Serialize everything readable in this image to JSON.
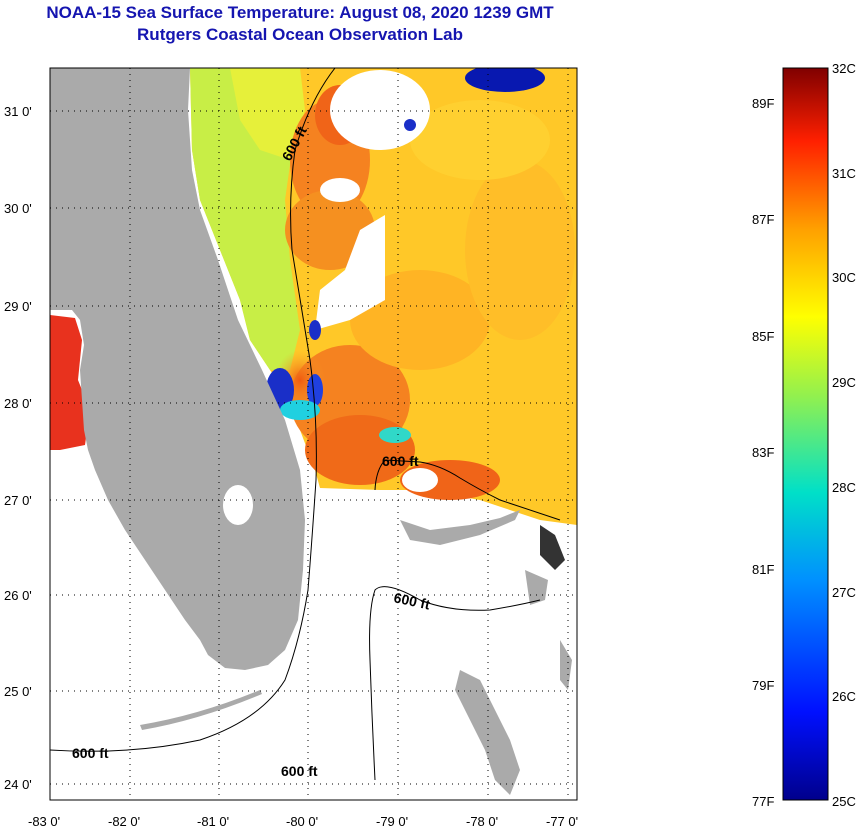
{
  "header": {
    "title": "NOAA-15 Sea Surface Temperature:  August 08, 2020 1239 GMT",
    "subtitle": "Rutgers Coastal Ocean Observation Lab"
  },
  "map": {
    "lon_labels": [
      "-83 0'",
      "-82 0'",
      "-81 0'",
      "-80 0'",
      "-79 0'",
      "-78 0'",
      "-77 0'"
    ],
    "lat_labels": [
      "31 0'",
      "30 0'",
      "29 0'",
      "28 0'",
      "27 0'",
      "26 0'",
      "25 0'",
      "24 0'"
    ],
    "contour_labels": [
      "600 ft",
      "600 ft",
      "600 ft",
      "600 ft",
      "600 ft"
    ],
    "colors": {
      "land": "#aaaaaa",
      "no_data": "#ffffff",
      "warm_orange": "#f07a1e",
      "yellow": "#ffd21e",
      "lime": "#c8f03c",
      "cold_blue": "#1a2fc8"
    }
  },
  "colorbar": {
    "celsius_labels": [
      "32C",
      "31C",
      "30C",
      "29C",
      "28C",
      "27C",
      "26C",
      "25C"
    ],
    "fahrenheit_labels": [
      "89F",
      "87F",
      "85F",
      "83F",
      "81F",
      "79F",
      "77F"
    ]
  }
}
